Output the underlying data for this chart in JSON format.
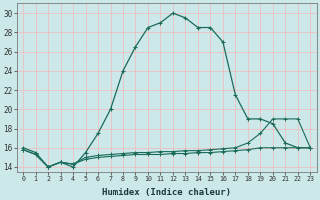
{
  "xlabel": "Humidex (Indice chaleur)",
  "x": [
    0,
    1,
    2,
    3,
    4,
    5,
    6,
    7,
    8,
    9,
    10,
    11,
    12,
    13,
    14,
    15,
    16,
    17,
    18,
    19,
    20,
    21,
    22,
    23
  ],
  "line1": [
    16.0,
    15.5,
    14.0,
    14.5,
    14.0,
    15.5,
    17.5,
    20.0,
    24.0,
    26.5,
    28.5,
    29.0,
    30.0,
    29.5,
    28.5,
    28.5,
    27.0,
    21.5,
    19.0,
    19.0,
    18.5,
    16.5,
    16.0,
    16.0
  ],
  "line2": [
    15.8,
    15.3,
    14.0,
    14.5,
    14.3,
    15.0,
    15.2,
    15.3,
    15.4,
    15.5,
    15.5,
    15.6,
    15.6,
    15.7,
    15.7,
    15.8,
    15.9,
    16.0,
    16.5,
    17.5,
    19.0,
    19.0,
    19.0,
    16.0
  ],
  "line3": [
    15.8,
    15.3,
    14.0,
    14.5,
    14.3,
    14.8,
    15.0,
    15.1,
    15.2,
    15.3,
    15.3,
    15.3,
    15.4,
    15.4,
    15.5,
    15.5,
    15.6,
    15.7,
    15.8,
    16.0,
    16.0,
    16.0,
    16.0,
    16.0
  ],
  "color": "#1a6b5a",
  "bg_color": "#cce8e8",
  "grid_color": "#f5b8b8",
  "ylim": [
    13.5,
    31
  ],
  "yticks": [
    14,
    16,
    18,
    20,
    22,
    24,
    26,
    28,
    30
  ],
  "xlim": [
    -0.5,
    23.5
  ]
}
